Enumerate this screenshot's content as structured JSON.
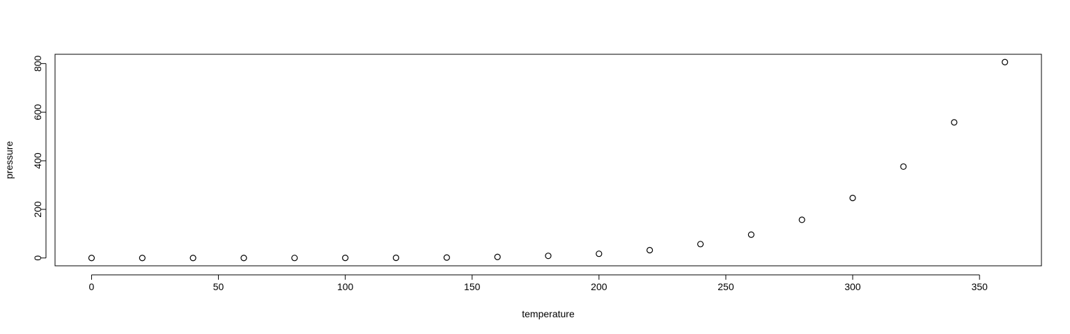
{
  "chart_data": {
    "type": "scatter",
    "xlabel": "temperature",
    "ylabel": "pressure",
    "x": [
      0,
      20,
      40,
      60,
      80,
      100,
      120,
      140,
      160,
      180,
      200,
      220,
      240,
      260,
      280,
      300,
      320,
      340,
      360
    ],
    "y": [
      0.0002,
      0.0012,
      0.006,
      0.03,
      0.09,
      0.27,
      0.75,
      1.85,
      4.2,
      8.8,
      17.3,
      32.1,
      57,
      96,
      157,
      247,
      376,
      558,
      806
    ],
    "xlim": [
      -14.4,
      374.4
    ],
    "ylim": [
      -32.24,
      838.24
    ],
    "xticks": [
      0,
      50,
      100,
      150,
      200,
      250,
      300,
      350
    ],
    "xtick_labels": [
      "0",
      "50",
      "100",
      "150",
      "200",
      "250",
      "300",
      "350"
    ],
    "yticks": [
      0,
      200,
      400,
      600,
      800
    ],
    "ytick_labels": [
      "0",
      "200",
      "400",
      "600",
      "800"
    ],
    "grid": false,
    "legend": "none",
    "marker": "open-circle",
    "colors": {
      "points": "#000000",
      "axes": "#000000",
      "background": "#ffffff"
    }
  }
}
